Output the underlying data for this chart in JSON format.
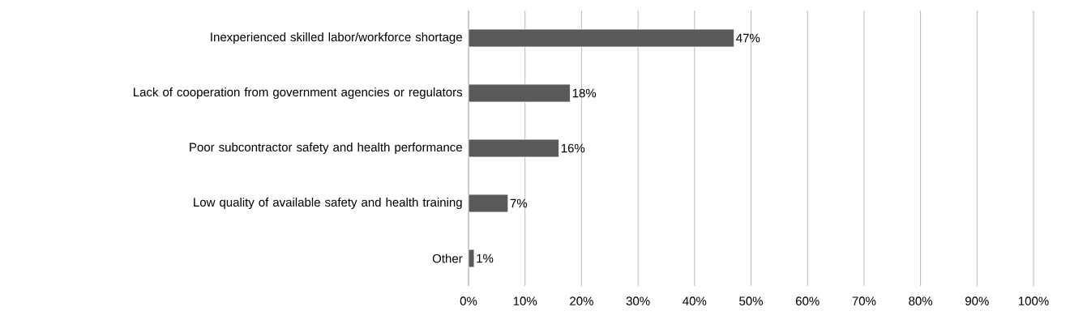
{
  "chart_data": {
    "type": "bar",
    "orientation": "horizontal",
    "categories": [
      "Inexperienced skilled labor/workforce shortage",
      "Lack of cooperation from government agencies or regulators",
      "Poor subcontractor safety and health performance",
      "Low quality of available safety and health training",
      "Other"
    ],
    "values": [
      47,
      18,
      16,
      7,
      1
    ],
    "value_labels": [
      "47%",
      "18%",
      "16%",
      "7%",
      "1%"
    ],
    "color": "#595959",
    "xlim": [
      0,
      100
    ],
    "xticks": [
      {
        "value": 0,
        "label": "0%"
      },
      {
        "value": 10,
        "label": "10%"
      },
      {
        "value": 20,
        "label": "20%"
      },
      {
        "value": 30,
        "label": "30%"
      },
      {
        "value": 40,
        "label": "40%"
      },
      {
        "value": 50,
        "label": "50%"
      },
      {
        "value": 60,
        "label": "60%"
      },
      {
        "value": 70,
        "label": "70%"
      },
      {
        "value": 80,
        "label": "80%"
      },
      {
        "value": 90,
        "label": "90%"
      },
      {
        "value": 100,
        "label": "100%"
      }
    ],
    "grid": "x"
  }
}
